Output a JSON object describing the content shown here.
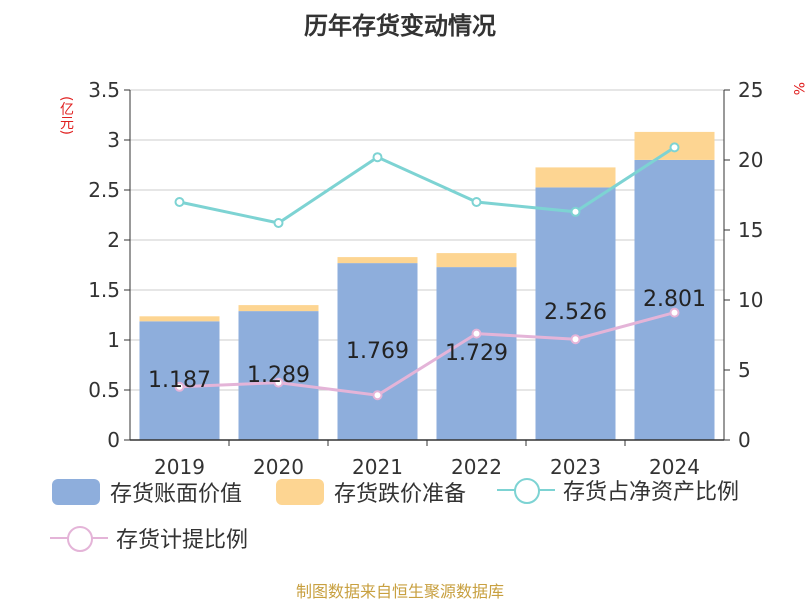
{
  "title": "历年存货变动情况",
  "unit_left": "(亿元)",
  "unit_right": "%",
  "source": "制图数据来自恒生聚源数据库",
  "colors": {
    "book_value": "#8eaedc",
    "reserve": "#fdd592",
    "ratio_net_assets": "#7dd3d3",
    "provision_ratio": "#e4b4d8"
  },
  "chart_data": {
    "type": "bar",
    "categories": [
      "2019",
      "2020",
      "2021",
      "2022",
      "2023",
      "2024"
    ],
    "series": [
      {
        "name": "存货账面价值",
        "kind": "bar",
        "axis": "left",
        "values": [
          1.187,
          1.289,
          1.769,
          1.729,
          2.526,
          2.801
        ]
      },
      {
        "name": "存货跌价准备",
        "kind": "bar-stack",
        "axis": "left",
        "values": [
          0.05,
          0.06,
          0.06,
          0.14,
          0.2,
          0.28
        ]
      },
      {
        "name": "存货占净资产比例",
        "kind": "line",
        "axis": "right",
        "values": [
          17.0,
          15.5,
          20.2,
          17.0,
          16.3,
          20.9
        ]
      },
      {
        "name": "存货计提比例",
        "kind": "line",
        "axis": "right",
        "values": [
          3.8,
          4.1,
          3.2,
          7.6,
          7.2,
          9.1
        ]
      }
    ],
    "data_labels": [
      "1.187",
      "1.289",
      "1.769",
      "1.729",
      "2.526",
      "2.801"
    ],
    "left_axis": {
      "ticks": [
        "0",
        "0.5",
        "1",
        "1.5",
        "2",
        "2.5",
        "3",
        "3.5"
      ],
      "ylim": [
        0,
        3.5
      ]
    },
    "right_axis": {
      "ticks": [
        "0",
        "5",
        "10",
        "15",
        "20",
        "25"
      ],
      "ylim": [
        0,
        25
      ]
    },
    "grid": true,
    "legend_position": "bottom"
  }
}
